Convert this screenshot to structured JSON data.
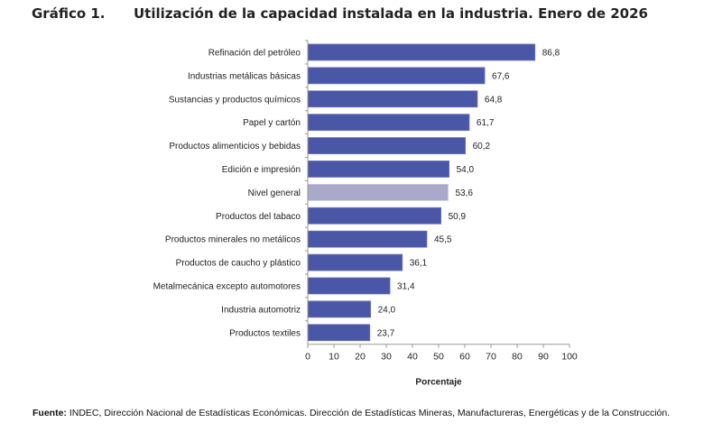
{
  "header": {
    "figure_number": "Gráfico 1.",
    "title": "Utilización de la capacidad instalada en la industria. Enero de 2026"
  },
  "source": {
    "label": "Fuente:",
    "text": "INDEC, Dirección Nacional de Estadísticas Económicas. Dirección de Estadísticas Mineras, Manufactureras, Energéticas y de la Construcción."
  },
  "colors": {
    "bar": "#4a56a6",
    "bar_highlight": "#a9a9c9",
    "axis": "#999999"
  },
  "chart_data": {
    "type": "bar",
    "orientation": "horizontal",
    "title": "Utilización de la capacidad instalada en la industria. Enero de 2026",
    "xlabel": "Porcentaje",
    "ylabel": "",
    "xlim": [
      0,
      100
    ],
    "xticks": [
      0,
      10,
      20,
      30,
      40,
      50,
      60,
      70,
      80,
      90,
      100
    ],
    "grid": false,
    "categories": [
      "Refinación del petróleo",
      "Industrias metálicas básicas",
      "Sustancias y productos químicos",
      "Papel y cartón",
      "Productos alimenticios y bebidas",
      "Edición e impresión",
      "Nivel general",
      "Productos del tabaco",
      "Productos minerales no metálicos",
      "Productos de caucho y plástico",
      "Metalmecánica excepto automotores",
      "Industria automotriz",
      "Productos textiles"
    ],
    "values": [
      86.8,
      67.6,
      64.8,
      61.7,
      60.2,
      54.0,
      53.6,
      50.9,
      45.5,
      36.1,
      31.4,
      24.0,
      23.7
    ],
    "value_labels": [
      "86,8",
      "67,6",
      "64,8",
      "61,7",
      "60,2",
      "54,0",
      "53,6",
      "50,9",
      "45,5",
      "36,1",
      "31,4",
      "24,0",
      "23,7"
    ],
    "highlight_category": "Nivel general"
  }
}
